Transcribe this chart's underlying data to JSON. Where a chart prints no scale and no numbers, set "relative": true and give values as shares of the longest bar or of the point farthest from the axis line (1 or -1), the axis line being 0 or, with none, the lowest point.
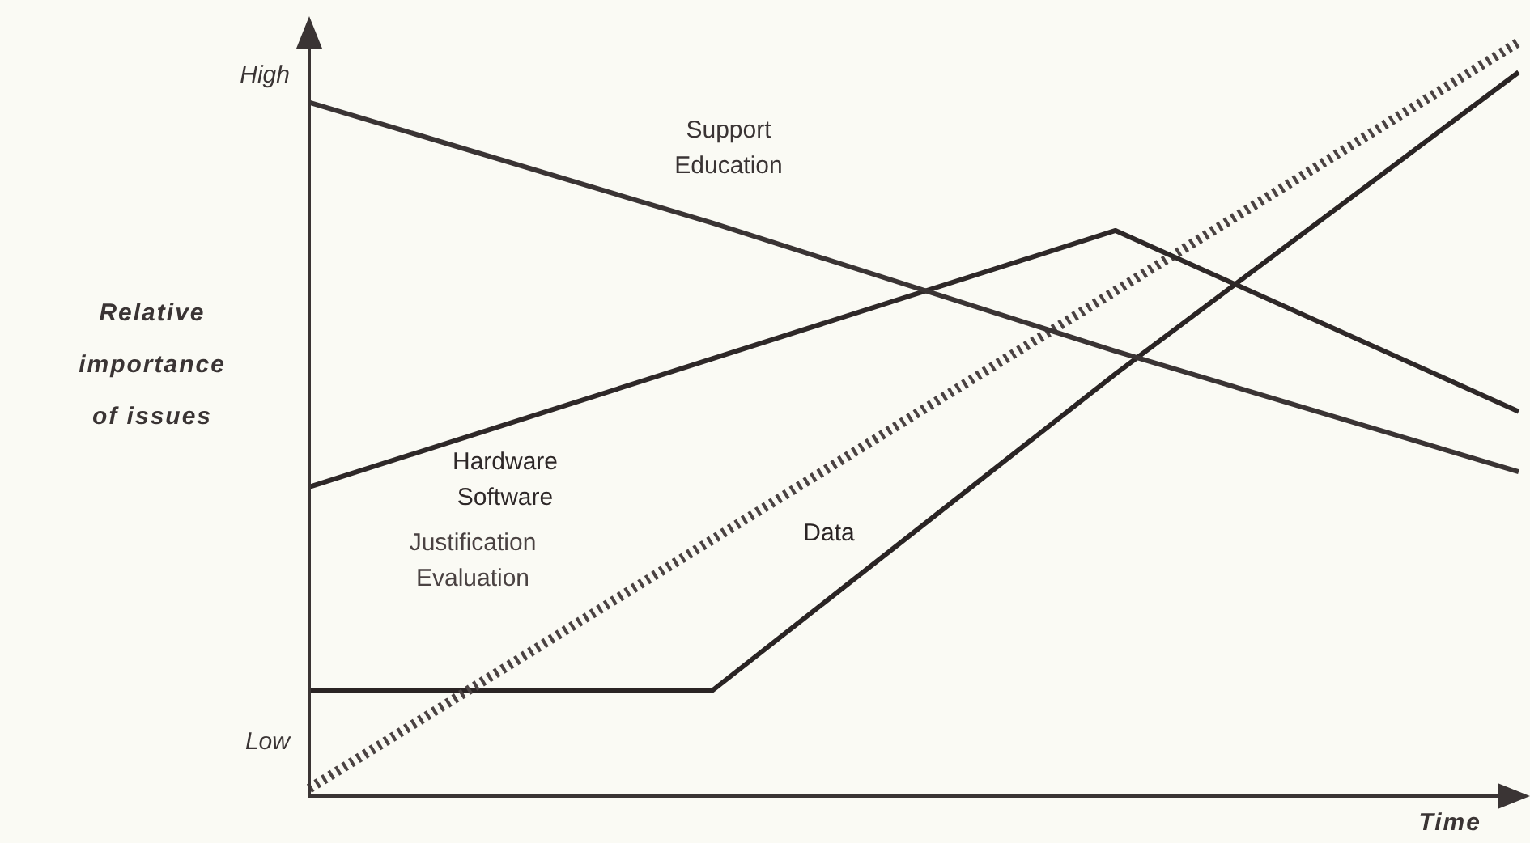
{
  "chart_data": {
    "type": "line",
    "relative": true,
    "xlabel": "Time",
    "ylabel": "Relative importance of issues",
    "annotations": [
      "High",
      "Low"
    ],
    "categories": [
      null,
      null,
      null,
      null
    ],
    "marker": "none",
    "series": [
      {
        "name": "Support Education",
        "color": "#3a3434",
        "line_style": "solid",
        "values": [
          0.92,
          0.76,
          0.59,
          0.43
        ]
      },
      {
        "name": "Hardware Software",
        "color": "#2e2828",
        "line_style": "solid",
        "values": [
          0.41,
          0.58,
          0.75,
          0.51
        ]
      },
      {
        "name": "Justification Evaluation",
        "color": "#4a4242",
        "line_style": "dotted",
        "values": [
          0.01,
          0.34,
          0.67,
          1
        ]
      },
      {
        "name": "Data",
        "color": "#2a2424",
        "line_style": "solid",
        "values": [
          0.14,
          0.14,
          0.56,
          0.96
        ]
      }
    ]
  }
}
